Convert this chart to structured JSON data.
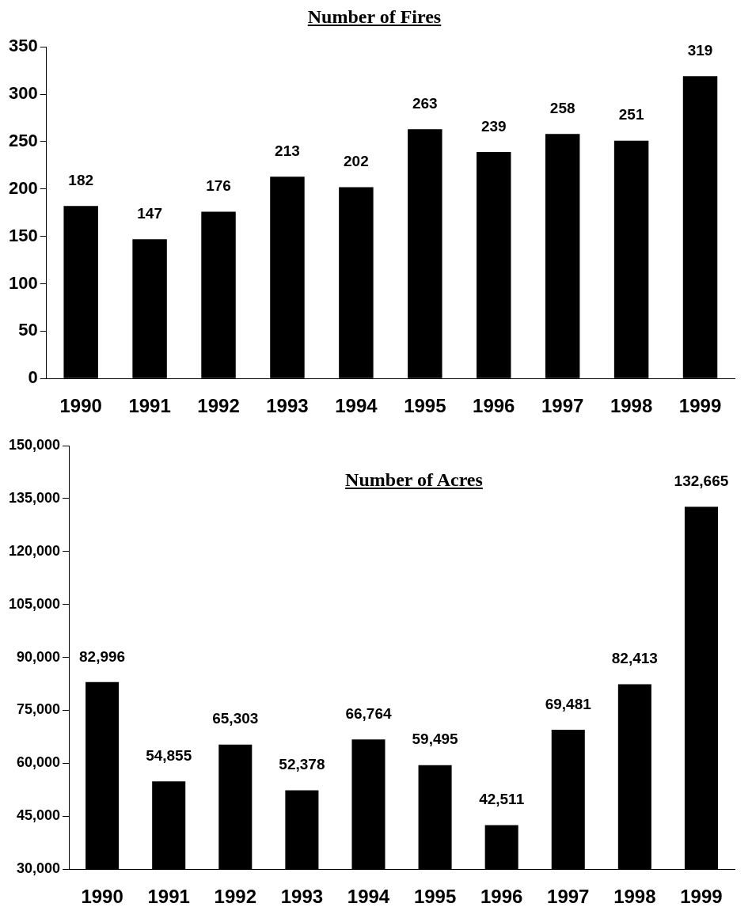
{
  "chart_data": [
    {
      "type": "bar",
      "title": "Number of Fires",
      "categories": [
        "1990",
        "1991",
        "1992",
        "1993",
        "1994",
        "1995",
        "1996",
        "1997",
        "1998",
        "1999"
      ],
      "values": [
        182,
        147,
        176,
        213,
        202,
        263,
        239,
        258,
        251,
        319
      ],
      "color": "#000000",
      "ylim": [
        0,
        350
      ],
      "yticks": [
        0,
        50,
        100,
        150,
        200,
        250,
        300,
        350
      ],
      "grid": false,
      "legend": false,
      "data_labels": true
    },
    {
      "type": "bar",
      "title": "Number of Acres",
      "categories": [
        "1990",
        "1991",
        "1992",
        "1993",
        "1994",
        "1995",
        "1996",
        "1997",
        "1998",
        "1999"
      ],
      "values": [
        82996,
        54855,
        65303,
        52378,
        66764,
        59495,
        42511,
        69481,
        82413,
        132665
      ],
      "value_labels": [
        "82,996",
        "54,855",
        "65,303",
        "52,378",
        "66,764",
        "59,495",
        "42,511",
        "69,481",
        "82,413",
        "132,665"
      ],
      "color": "#000000",
      "ylim": [
        30000,
        150000
      ],
      "yticks": [
        {
          "value": 30000,
          "label": "30,000"
        },
        {
          "value": 45000,
          "label": "45,000"
        },
        {
          "value": 60000,
          "label": "60,000"
        },
        {
          "value": 75000,
          "label": "75,000"
        },
        {
          "value": 90000,
          "label": "90,000"
        },
        {
          "value": 105000,
          "label": "105,000"
        },
        {
          "value": 120000,
          "label": "120,000"
        },
        {
          "value": 135000,
          "label": "135,000"
        },
        {
          "value": 150000,
          "label": "150,000"
        }
      ],
      "grid": false,
      "legend": false
    }
  ]
}
